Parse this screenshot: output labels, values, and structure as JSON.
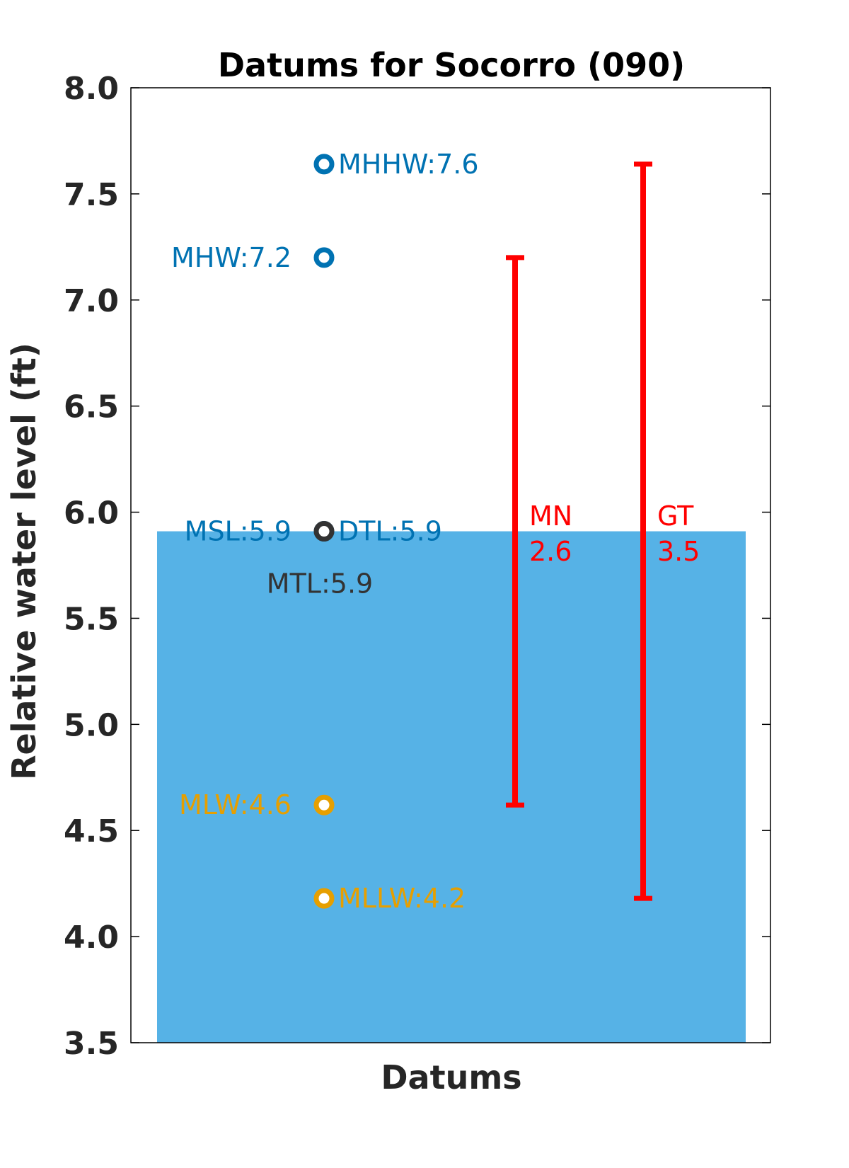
{
  "chart_data": {
    "type": "scatter",
    "title": "Datums for Socorro (090)",
    "xlabel": "Datums",
    "ylabel": "Relative water level (ft)",
    "ylim": [
      3.5,
      8.0
    ],
    "yticks": [
      "3.5",
      "4.0",
      "4.5",
      "5.0",
      "5.5",
      "6.0",
      "6.5",
      "7.0",
      "7.5",
      "8.0"
    ],
    "grid": false,
    "water_level": 5.91,
    "colors": {
      "water": "#56b2e6",
      "high": "#0072b2",
      "mid": "#333333",
      "low": "#e69f00",
      "range": "#ff0000",
      "axis": "#000000"
    },
    "datums": [
      {
        "name": "MHHW",
        "value": 7.64,
        "label": "MHHW:7.6",
        "color": "high",
        "label_side": "right"
      },
      {
        "name": "MHW",
        "value": 7.2,
        "label": "MHW:7.2",
        "color": "high",
        "label_side": "left"
      },
      {
        "name": "MSL",
        "value": 5.91,
        "label": "MSL:5.9",
        "color": "high",
        "label_side": "left"
      },
      {
        "name": "DTL",
        "value": 5.91,
        "label": "DTL:5.9",
        "color": "high",
        "label_side": "right"
      },
      {
        "name": "MTL",
        "value": 5.91,
        "label": "MTL:5.9",
        "color": "mid",
        "label_side": "below"
      },
      {
        "name": "MLW",
        "value": 4.62,
        "label": "MLW:4.6",
        "color": "low",
        "label_side": "left"
      },
      {
        "name": "MLLW",
        "value": 4.18,
        "label": "MLLW:4.2",
        "color": "low",
        "label_side": "right"
      }
    ],
    "ranges": [
      {
        "name": "MN",
        "value_text": "2.6",
        "low": 4.62,
        "high": 7.2
      },
      {
        "name": "GT",
        "value_text": "3.5",
        "low": 4.18,
        "high": 7.64
      }
    ]
  }
}
